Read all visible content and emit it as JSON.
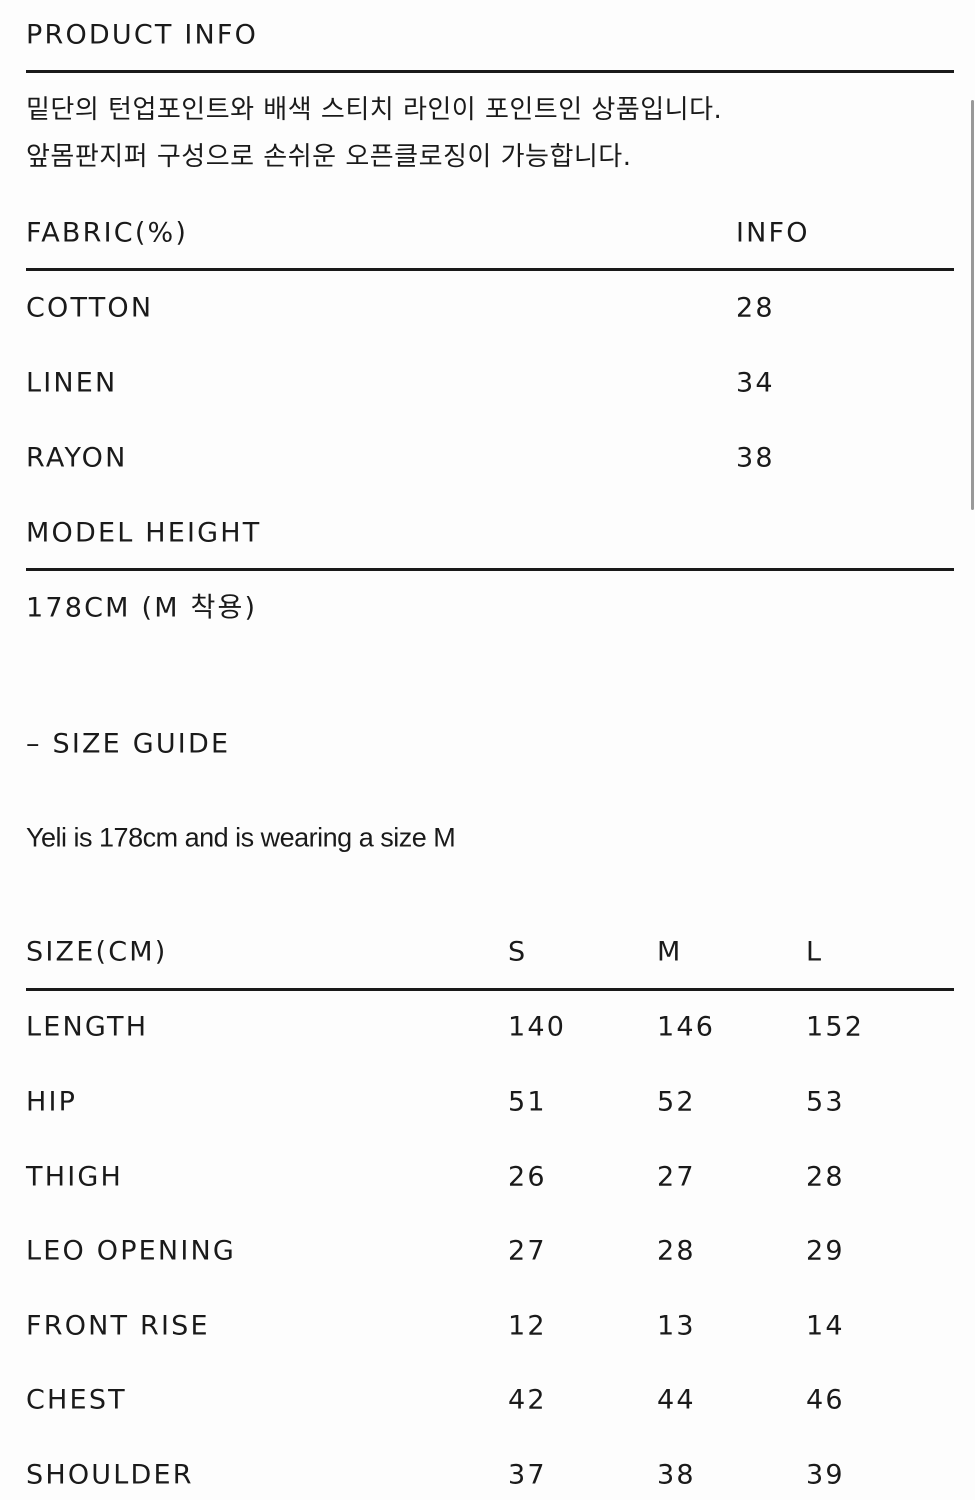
{
  "product_info": {
    "title": "PRODUCT INFO",
    "description": [
      "밑단의 턴업포인트와 배색 스티치 라인이 포인트인 상품입니다.",
      "앞몸판지퍼 구성으로 손쉬운 오픈클로징이 가능합니다."
    ],
    "fabric_header": "FABRIC(%)",
    "info_header": "INFO",
    "fabrics": [
      {
        "name": "COTTON",
        "value": "28"
      },
      {
        "name": "LINEN",
        "value": "34"
      },
      {
        "name": "RAYON",
        "value": "38"
      }
    ],
    "model_height_label": "MODEL HEIGHT",
    "model_height_value": "178CM (M 착용)"
  },
  "size_guide": {
    "title": "– SIZE GUIDE",
    "note": "Yeli is 178cm and is wearing a size M",
    "header": [
      "SIZE(CM)",
      "S",
      "M",
      "L"
    ],
    "rows": [
      [
        "LENGTH",
        "140",
        "146",
        "152"
      ],
      [
        "HIP",
        "51",
        "52",
        "53"
      ],
      [
        "THIGH",
        "26",
        "27",
        "28"
      ],
      [
        "LEO OPENING",
        "27",
        "28",
        "29"
      ],
      [
        "FRONT RISE",
        "12",
        "13",
        "14"
      ],
      [
        "CHEST",
        "42",
        "44",
        "46"
      ],
      [
        "SHOULDER",
        "37",
        "38",
        "39"
      ]
    ]
  }
}
